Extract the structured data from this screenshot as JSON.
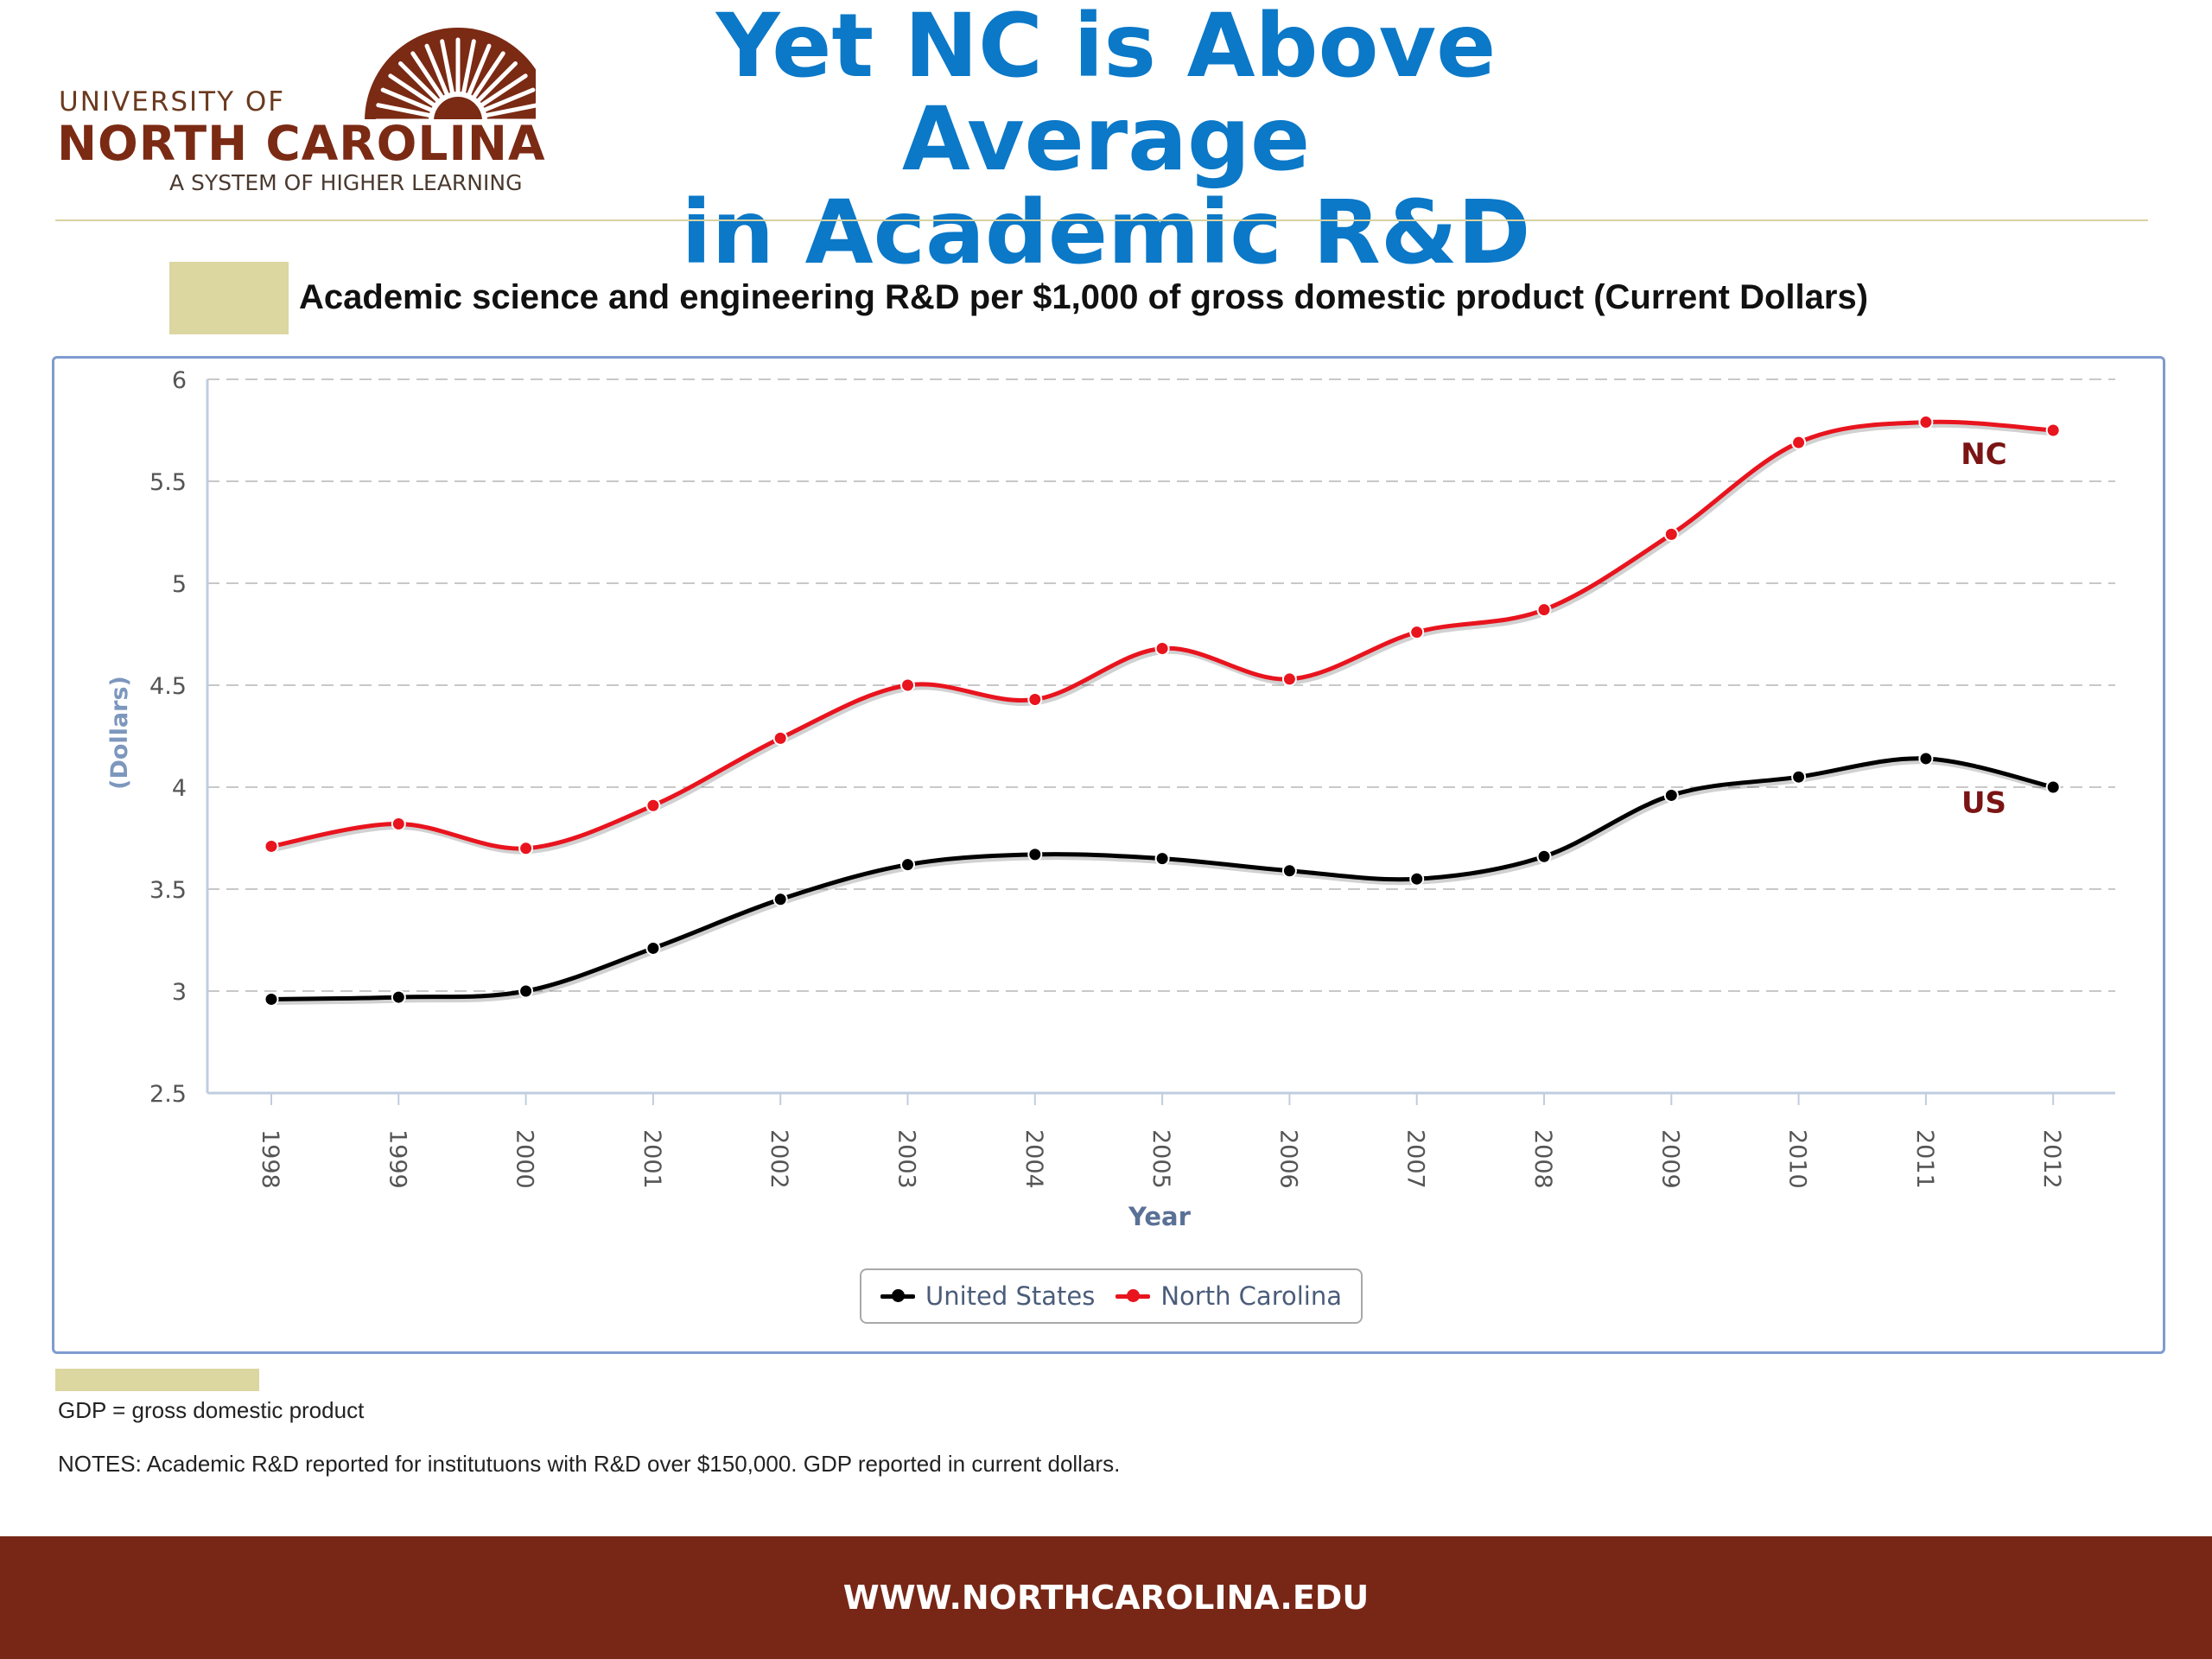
{
  "logo": {
    "line1": "UNIVERSITY OF",
    "line2": "NORTH CAROLINA",
    "line3": "A SYSTEM OF HIGHER LEARNING",
    "color": "#7b2a14"
  },
  "slide": {
    "title_line1": "Yet NC is Above Average",
    "title_line2": "in Academic R&D"
  },
  "colors": {
    "title": "#0b78c8",
    "us": "#000000",
    "nc": "#e8141e",
    "footer": "#782716",
    "swatch": "#dcd6a0"
  },
  "chart_data": {
    "type": "line",
    "title": "Academic science and engineering R&D per $1,000 of gross domestic product (Current Dollars)",
    "xlabel": "Year",
    "ylabel": "(Dollars)",
    "ylim": [
      2.5,
      6
    ],
    "yticks": [
      "2.5",
      "3",
      "3.5",
      "4",
      "4.5",
      "5",
      "5.5",
      "6"
    ],
    "grid": true,
    "legend_position": "bottom",
    "categories": [
      "1998",
      "1999",
      "2000",
      "2001",
      "2002",
      "2003",
      "2004",
      "2005",
      "2006",
      "2007",
      "2008",
      "2009",
      "2010",
      "2011",
      "2012"
    ],
    "series": [
      {
        "name": "United States",
        "color": "#000000",
        "label": "US",
        "values": [
          2.96,
          2.97,
          3.0,
          3.21,
          3.45,
          3.62,
          3.67,
          3.65,
          3.59,
          3.55,
          3.66,
          3.96,
          4.05,
          4.14,
          4.0
        ]
      },
      {
        "name": "North Carolina",
        "color": "#e8141e",
        "label": "NC",
        "values": [
          3.71,
          3.82,
          3.7,
          3.91,
          4.24,
          4.5,
          4.43,
          4.68,
          4.53,
          4.76,
          4.87,
          5.24,
          5.69,
          5.79,
          5.75
        ]
      }
    ]
  },
  "footnotes": {
    "gdp": "GDP = gross domestic product",
    "notes": "NOTES: Academic R&D reported for institutuons with R&D over $150,000. GDP reported in current dollars."
  },
  "footer": {
    "url": "WWW.NORTHCAROLINA.EDU"
  }
}
